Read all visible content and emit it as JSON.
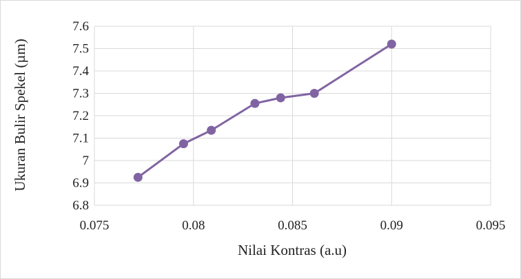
{
  "chart_data": {
    "type": "scatter",
    "title": "",
    "xlabel": "Nilai Kontras (a.u)",
    "ylabel": "Ukuran Bulir Spekel  (µm)",
    "xlim": [
      0.075,
      0.095
    ],
    "ylim": [
      6.8,
      7.6
    ],
    "x_ticks": [
      "0.075",
      "0.08",
      "0.085",
      "0.09",
      "0.095"
    ],
    "y_ticks": [
      "6.8",
      "6.9",
      "7",
      "7.1",
      "7.2",
      "7.3",
      "7.4",
      "7.5",
      "7.6"
    ],
    "grid": true,
    "legend": "none",
    "series": [
      {
        "color": "#8064a2",
        "points": [
          {
            "x": 0.0772,
            "y": 6.925
          },
          {
            "x": 0.0795,
            "y": 7.075
          },
          {
            "x": 0.0809,
            "y": 7.135
          },
          {
            "x": 0.0831,
            "y": 7.255
          },
          {
            "x": 0.0844,
            "y": 7.28
          },
          {
            "x": 0.0861,
            "y": 7.3
          },
          {
            "x": 0.09,
            "y": 7.52
          }
        ]
      }
    ]
  }
}
